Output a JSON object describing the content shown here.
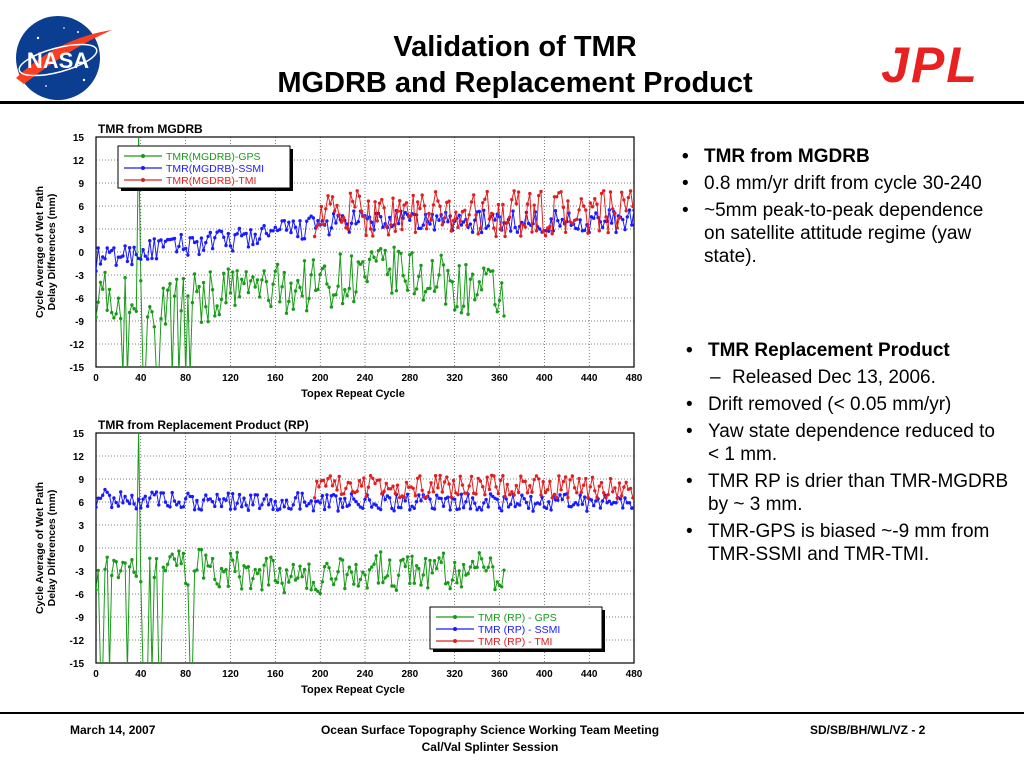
{
  "header": {
    "title_line1": "Validation of TMR",
    "title_line2": "MGDRB and Replacement Product",
    "nasa_logo": "NASA",
    "jpl_logo": "JPL"
  },
  "bullets_top": [
    {
      "text": "TMR from MGDRB",
      "bold": true
    },
    {
      "text": "0.8 mm/yr drift from cycle 30-240",
      "bold": false
    },
    {
      "text": "~5mm peak-to-peak dependence on satellite attitude regime (yaw state).",
      "bold": false
    }
  ],
  "bullets_bottom": {
    "heading": "TMR Replacement Product",
    "sub": "Released Dec 13, 2006.",
    "items": [
      "Drift removed (< 0.05 mm/yr)",
      "Yaw state dependence reduced to < 1 mm.",
      "TMR RP is drier than TMR-MGDRB by ~ 3 mm.",
      "TMR-GPS is biased ~-9 mm from TMR-SSMI and TMR-TMI."
    ]
  },
  "footer": {
    "date": "March 14, 2007",
    "meeting": "Ocean Surface Topography Science Working Team Meeting",
    "session": "Cal/Val Splinter Session",
    "code": "SD/SB/BH/WL/VZ - 2"
  },
  "chart_data": [
    {
      "type": "line",
      "title": "TMR from MGDRB",
      "xlabel": "Topex Repeat Cycle",
      "ylabel": "Cycle Average of Wet Path Delay Differences (mm)",
      "xlim": [
        0,
        480
      ],
      "ylim": [
        -15,
        15
      ],
      "xticks": [
        0,
        40,
        80,
        120,
        160,
        200,
        240,
        280,
        320,
        360,
        400,
        440,
        480
      ],
      "yticks": [
        15,
        12,
        9,
        6,
        3,
        0,
        -3,
        -6,
        -9,
        -12,
        -15
      ],
      "legend_position": "top-left",
      "grid": true,
      "series": [
        {
          "name": "TMR(MGDRB)-GPS",
          "color": "#1a9a1a",
          "x_range": [
            0,
            365
          ],
          "keypoints": [
            [
              0,
              -5
            ],
            [
              20,
              -6
            ],
            [
              40,
              -7
            ],
            [
              60,
              -6.5
            ],
            [
              80,
              -6
            ],
            [
              100,
              -6
            ],
            [
              120,
              -5
            ],
            [
              140,
              -4.5
            ],
            [
              160,
              -5
            ],
            [
              180,
              -4.5
            ],
            [
              200,
              -4
            ],
            [
              220,
              -3.5
            ],
            [
              240,
              -3
            ],
            [
              260,
              -2.5
            ],
            [
              280,
              -3
            ],
            [
              300,
              -3.5
            ],
            [
              320,
              -4.5
            ],
            [
              340,
              -5
            ],
            [
              365,
              -6
            ]
          ],
          "noise": 3.5
        },
        {
          "name": "TMR(MGDRB)-SSMI",
          "color": "#1a1aff",
          "x_range": [
            0,
            480
          ],
          "keypoints": [
            [
              0,
              -1
            ],
            [
              40,
              0
            ],
            [
              80,
              1
            ],
            [
              120,
              1.5
            ],
            [
              160,
              2.5
            ],
            [
              200,
              3.5
            ],
            [
              240,
              4
            ],
            [
              280,
              4
            ],
            [
              320,
              4
            ],
            [
              360,
              4
            ],
            [
              400,
              4
            ],
            [
              440,
              4
            ],
            [
              480,
              4
            ]
          ],
          "noise": 1.5
        },
        {
          "name": "TMR(MGDRB)-TMI",
          "color": "#e02020",
          "x_range": [
            195,
            480
          ],
          "keypoints": [
            [
              195,
              5
            ],
            [
              240,
              5
            ],
            [
              280,
              5
            ],
            [
              320,
              5
            ],
            [
              360,
              5
            ],
            [
              400,
              5
            ],
            [
              440,
              5
            ],
            [
              480,
              5
            ]
          ],
          "noise": 3
        }
      ]
    },
    {
      "type": "line",
      "title": "TMR from Replacement Product (RP)",
      "xlabel": "Topex Repeat Cycle",
      "ylabel": "Cycle Average of Wet Path Delay Differences (mm)",
      "xlim": [
        0,
        480
      ],
      "ylim": [
        -15,
        15
      ],
      "xticks": [
        0,
        40,
        80,
        120,
        160,
        200,
        240,
        280,
        320,
        360,
        400,
        440,
        480
      ],
      "yticks": [
        15,
        12,
        9,
        6,
        3,
        0,
        -3,
        -6,
        -9,
        -12,
        -15
      ],
      "legend_position": "bottom-right",
      "grid": true,
      "series": [
        {
          "name": "TMR (RP) - GPS",
          "color": "#1a9a1a",
          "x_range": [
            0,
            365
          ],
          "keypoints": [
            [
              0,
              -3
            ],
            [
              40,
              -3.5
            ],
            [
              80,
              -2.5
            ],
            [
              120,
              -3
            ],
            [
              160,
              -3.5
            ],
            [
              200,
              -3.5
            ],
            [
              240,
              -3
            ],
            [
              280,
              -3
            ],
            [
              320,
              -3
            ],
            [
              365,
              -3
            ]
          ],
          "noise": 2.5
        },
        {
          "name": "TMR (RP) - SSMI",
          "color": "#1a1aff",
          "x_range": [
            0,
            480
          ],
          "keypoints": [
            [
              0,
              6.5
            ],
            [
              80,
              6
            ],
            [
              160,
              6
            ],
            [
              240,
              6
            ],
            [
              320,
              6
            ],
            [
              400,
              6
            ],
            [
              480,
              6
            ]
          ],
          "noise": 1.2
        },
        {
          "name": "TMR (RP) - TMI",
          "color": "#e02020",
          "x_range": [
            195,
            480
          ],
          "keypoints": [
            [
              195,
              8
            ],
            [
              280,
              8
            ],
            [
              360,
              8
            ],
            [
              480,
              8
            ]
          ],
          "noise": 1.5
        }
      ]
    }
  ]
}
